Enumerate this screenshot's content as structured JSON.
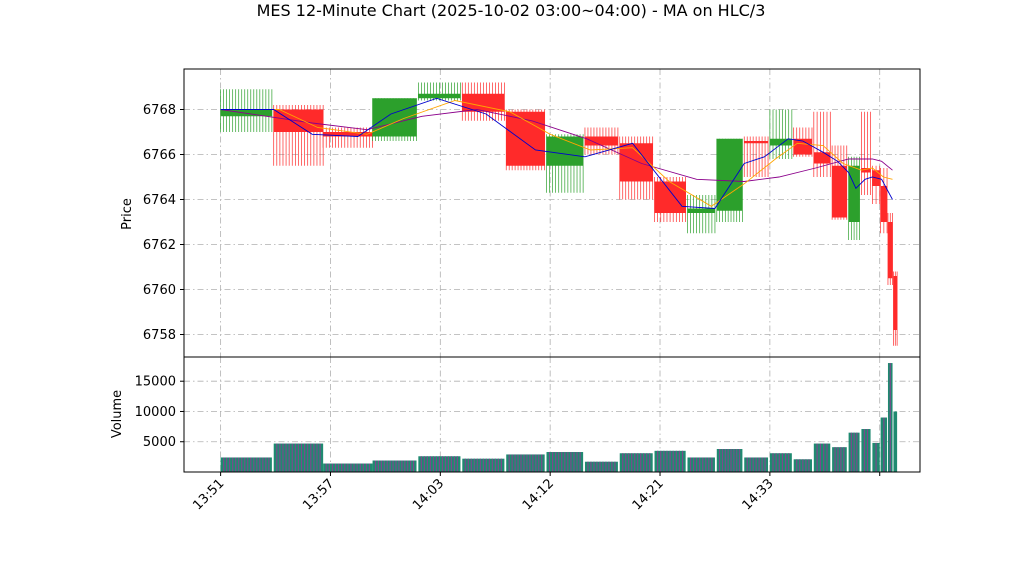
{
  "chart_data": {
    "type": "candlestick",
    "title": "MES 12-Minute Chart (2025-10-02 03:00~04:00) - MA on HLC/3",
    "price_panel": {
      "ylabel": "Price",
      "ylim": [
        6757,
        6769.8
      ],
      "yticks": [
        6758,
        6760,
        6762,
        6764,
        6766,
        6768
      ],
      "grid": true
    },
    "volume_panel": {
      "ylabel": "Volume",
      "ylim": [
        0,
        19000
      ],
      "yticks": [
        5000,
        10000,
        15000
      ],
      "grid": true
    },
    "x_ticks": [
      {
        "i": 0,
        "label": "13:51"
      },
      {
        "i": 6,
        "label": "13:57"
      },
      {
        "i": 12,
        "label": "14:03"
      },
      {
        "i": 18,
        "label": "14:12"
      },
      {
        "i": 24,
        "label": "14:21"
      },
      {
        "i": 30,
        "label": "14:33"
      },
      {
        "i": 36,
        "label": ""
      }
    ],
    "xlim": [
      -2,
      38.2
    ],
    "candles": [
      {
        "i": 0,
        "w": 2.8,
        "o": 6767.7,
        "h": 6768.9,
        "l": 6767.0,
        "c": 6768.0,
        "v": 2400
      },
      {
        "i": 2.9,
        "w": 2.7,
        "o": 6768.0,
        "h": 6768.2,
        "l": 6765.5,
        "c": 6767.0,
        "v": 4700
      },
      {
        "i": 5.6,
        "w": 2.7,
        "o": 6767.0,
        "h": 6767.2,
        "l": 6766.3,
        "c": 6766.8,
        "v": 1400
      },
      {
        "i": 8.3,
        "w": 2.4,
        "o": 6766.8,
        "h": 6768.5,
        "l": 6766.6,
        "c": 6768.5,
        "v": 1900
      },
      {
        "i": 10.8,
        "w": 2.3,
        "o": 6768.5,
        "h": 6769.2,
        "l": 6768.4,
        "c": 6768.7,
        "v": 2600
      },
      {
        "i": 13.2,
        "w": 2.3,
        "o": 6768.7,
        "h": 6769.2,
        "l": 6767.5,
        "c": 6767.9,
        "v": 2200
      },
      {
        "i": 15.6,
        "w": 2.1,
        "o": 6767.9,
        "h": 6768.0,
        "l": 6765.3,
        "c": 6765.5,
        "v": 2900
      },
      {
        "i": 17.8,
        "w": 2.0,
        "o": 6765.5,
        "h": 6766.9,
        "l": 6764.3,
        "c": 6766.8,
        "v": 3300
      },
      {
        "i": 19.9,
        "w": 1.8,
        "o": 6766.8,
        "h": 6767.2,
        "l": 6766.0,
        "c": 6766.4,
        "v": 1700
      },
      {
        "i": 21.8,
        "w": 1.8,
        "o": 6766.5,
        "h": 6766.8,
        "l": 6764.0,
        "c": 6764.8,
        "v": 3100
      },
      {
        "i": 23.7,
        "w": 1.7,
        "o": 6764.8,
        "h": 6765.0,
        "l": 6763.0,
        "c": 6763.4,
        "v": 3500
      },
      {
        "i": 25.5,
        "w": 1.5,
        "o": 6763.4,
        "h": 6764.2,
        "l": 6762.5,
        "c": 6763.6,
        "v": 2400
      },
      {
        "i": 27.1,
        "w": 1.4,
        "o": 6763.5,
        "h": 6766.7,
        "l": 6763.0,
        "c": 6766.7,
        "v": 3800
      },
      {
        "i": 28.6,
        "w": 1.3,
        "o": 6766.6,
        "h": 6766.8,
        "l": 6765.0,
        "c": 6766.5,
        "v": 2400
      },
      {
        "i": 30.0,
        "w": 1.2,
        "o": 6766.4,
        "h": 6768.0,
        "l": 6765.8,
        "c": 6766.7,
        "v": 3100
      },
      {
        "i": 31.3,
        "w": 1.0,
        "o": 6766.7,
        "h": 6767.2,
        "l": 6765.9,
        "c": 6766.0,
        "v": 2100
      },
      {
        "i": 32.4,
        "w": 0.9,
        "o": 6766.1,
        "h": 6767.9,
        "l": 6765.0,
        "c": 6765.6,
        "v": 4700
      },
      {
        "i": 33.4,
        "w": 0.8,
        "o": 6765.5,
        "h": 6766.4,
        "l": 6763.1,
        "c": 6763.2,
        "v": 4100
      },
      {
        "i": 34.3,
        "w": 0.6,
        "o": 6763.0,
        "h": 6765.9,
        "l": 6762.2,
        "c": 6765.5,
        "v": 6500
      },
      {
        "i": 35.0,
        "w": 0.5,
        "o": 6765.4,
        "h": 6767.9,
        "l": 6764.2,
        "c": 6765.2,
        "v": 7100
      },
      {
        "i": 35.6,
        "w": 0.4,
        "o": 6765.3,
        "h": 6765.5,
        "l": 6763.8,
        "c": 6764.6,
        "v": 4800
      },
      {
        "i": 36.05,
        "w": 0.35,
        "o": 6764.6,
        "h": 6765.4,
        "l": 6762.5,
        "c": 6763.0,
        "v": 9000
      },
      {
        "i": 36.45,
        "w": 0.25,
        "o": 6763.0,
        "h": 6763.4,
        "l": 6760.2,
        "c": 6760.5,
        "v": 18000
      },
      {
        "i": 36.75,
        "w": 0.2,
        "o": 6760.6,
        "h": 6760.8,
        "l": 6757.5,
        "c": 6758.2,
        "v": 10000
      }
    ],
    "ma_fast": {
      "color": "#0000cd",
      "points": [
        [
          0,
          6768.0
        ],
        [
          2.9,
          6768.0
        ],
        [
          5.0,
          6766.9
        ],
        [
          7.5,
          6766.8
        ],
        [
          9.3,
          6767.8
        ],
        [
          11.8,
          6768.5
        ],
        [
          14.5,
          6767.8
        ],
        [
          17.2,
          6766.2
        ],
        [
          19.9,
          6765.9
        ],
        [
          22.5,
          6766.5
        ],
        [
          25.2,
          6763.7
        ],
        [
          27.0,
          6763.6
        ],
        [
          28.6,
          6765.6
        ],
        [
          29.7,
          6765.9
        ],
        [
          31.0,
          6766.7
        ],
        [
          31.8,
          6766.6
        ],
        [
          32.9,
          6766.1
        ],
        [
          33.7,
          6765.7
        ],
        [
          34.3,
          6765.2
        ],
        [
          34.7,
          6764.5
        ],
        [
          35.2,
          6764.9
        ],
        [
          35.6,
          6765.0
        ],
        [
          36.1,
          6764.9
        ],
        [
          36.7,
          6764.0
        ]
      ]
    },
    "ma_medium": {
      "color": "#ffa500",
      "points": [
        [
          0,
          6768.0
        ],
        [
          3.2,
          6768.0
        ],
        [
          5.3,
          6767.2
        ],
        [
          8.0,
          6766.9
        ],
        [
          10.0,
          6767.6
        ],
        [
          12.8,
          6768.4
        ],
        [
          15.8,
          6767.9
        ],
        [
          18.0,
          6766.9
        ],
        [
          20.2,
          6766.2
        ],
        [
          22.5,
          6766.3
        ],
        [
          24.5,
          6764.8
        ],
        [
          26.8,
          6763.7
        ],
        [
          28.6,
          6764.7
        ],
        [
          30.3,
          6765.8
        ],
        [
          31.5,
          6766.5
        ],
        [
          32.9,
          6766.4
        ],
        [
          34.0,
          6765.6
        ],
        [
          35.0,
          6765.3
        ],
        [
          35.6,
          6765.4
        ],
        [
          36.2,
          6765.0
        ],
        [
          36.7,
          6764.9
        ]
      ]
    },
    "ma_slow": {
      "color": "#8b008b",
      "points": [
        [
          0,
          6768.0
        ],
        [
          5.0,
          6767.4
        ],
        [
          8.0,
          6767.1
        ],
        [
          11.0,
          6767.7
        ],
        [
          14.0,
          6768.0
        ],
        [
          17.0,
          6767.5
        ],
        [
          20.0,
          6766.7
        ],
        [
          23.0,
          6765.6
        ],
        [
          26.0,
          6764.9
        ],
        [
          28.6,
          6764.8
        ],
        [
          30.5,
          6765.0
        ],
        [
          32.5,
          6765.4
        ],
        [
          34.3,
          6765.8
        ],
        [
          35.6,
          6765.8
        ],
        [
          36.1,
          6765.7
        ],
        [
          36.7,
          6765.3
        ]
      ]
    },
    "colors": {
      "up": "#2ca02c",
      "down": "#ff2a2a",
      "volume_up": "#1f8a70",
      "volume_down": "#7a4a8c",
      "grid": "#b0b0b0"
    }
  }
}
